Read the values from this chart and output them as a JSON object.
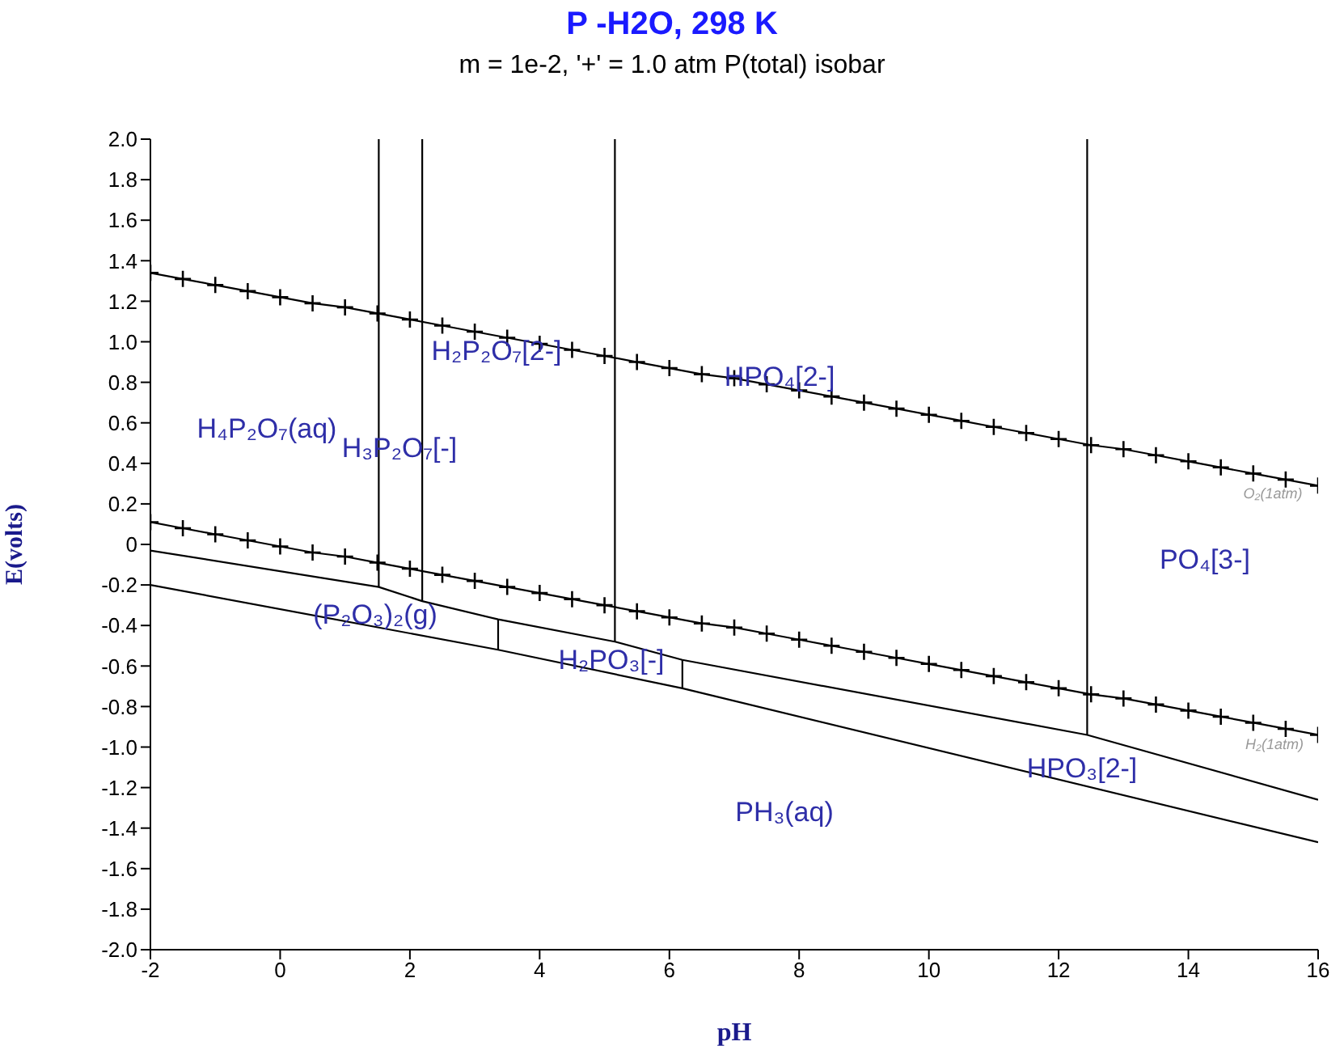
{
  "chart_data": {
    "type": "line",
    "title": "P -H2O, 298 K",
    "subtitle": "m = 1e-2, '+' = 1.0 atm P(total) isobar",
    "xlabel": "pH",
    "ylabel": "E(volts)",
    "xlim": [
      -2,
      16
    ],
    "xticks": [
      -2,
      0,
      2,
      4,
      6,
      8,
      10,
      12,
      14,
      16
    ],
    "ylim": [
      -2,
      2
    ],
    "yticks": [
      {
        "value": -2,
        "label": "-2.0"
      },
      -1.8,
      -1.6,
      -1.4,
      -1.2,
      {
        "value": -1,
        "label": "-1.0"
      },
      -0.8,
      -0.6,
      -0.4,
      -0.2,
      0,
      0.2,
      0.4,
      0.6,
      0.8,
      {
        "value": 1,
        "label": "1.0"
      },
      1.2,
      1.4,
      1.6,
      1.8,
      {
        "value": 2,
        "label": "2.0"
      }
    ],
    "marker": "none",
    "line_style": "solid",
    "series": [
      {
        "type": "line",
        "marker": "cross",
        "color": "#000000",
        "x": [
          -2,
          -1.5,
          -1,
          -0.5,
          0,
          0.5,
          1,
          1.5,
          2,
          2.5,
          3,
          3.5,
          4,
          4.5,
          5,
          5.5,
          6,
          6.5,
          7,
          7.5,
          8,
          8.5,
          9,
          9.5,
          10,
          10.5,
          11,
          11.5,
          12,
          12.5,
          13,
          13.5,
          14,
          14.5,
          15,
          15.5,
          16
        ],
        "values": [
          1.34,
          1.31,
          1.28,
          1.25,
          1.22,
          1.19,
          1.17,
          1.14,
          1.11,
          1.08,
          1.05,
          1.02,
          0.99,
          0.96,
          0.93,
          0.9,
          0.87,
          0.84,
          0.82,
          0.79,
          0.76,
          0.73,
          0.7,
          0.67,
          0.64,
          0.61,
          0.58,
          0.55,
          0.52,
          0.49,
          0.47,
          0.44,
          0.41,
          0.38,
          0.35,
          0.32,
          0.29
        ]
      },
      {
        "type": "line",
        "marker": "cross",
        "color": "#000000",
        "x": [
          -2,
          -1.5,
          -1,
          -0.5,
          0,
          0.5,
          1,
          1.5,
          2,
          2.5,
          3,
          3.5,
          4,
          4.5,
          5,
          5.5,
          6,
          6.5,
          7,
          7.5,
          8,
          8.5,
          9,
          9.5,
          10,
          10.5,
          11,
          11.5,
          12,
          12.5,
          13,
          13.5,
          14,
          14.5,
          15,
          15.5,
          16
        ],
        "values": [
          0.11,
          0.08,
          0.05,
          0.02,
          -0.01,
          -0.04,
          -0.06,
          -0.09,
          -0.12,
          -0.15,
          -0.18,
          -0.21,
          -0.24,
          -0.27,
          -0.3,
          -0.33,
          -0.36,
          -0.39,
          -0.41,
          -0.44,
          -0.47,
          -0.5,
          -0.53,
          -0.56,
          -0.59,
          -0.62,
          -0.65,
          -0.68,
          -0.71,
          -0.74,
          -0.76,
          -0.79,
          -0.82,
          -0.85,
          -0.88,
          -0.91,
          -0.94
        ]
      },
      {
        "type": "line",
        "color": "#000000",
        "x": [
          1.52,
          1.52
        ],
        "values": [
          2,
          -0.21
        ]
      },
      {
        "type": "line",
        "color": "#000000",
        "x": [
          2.19,
          2.19
        ],
        "values": [
          2,
          -0.28
        ]
      },
      {
        "type": "line",
        "color": "#000000",
        "x": [
          5.16,
          5.16
        ],
        "values": [
          2,
          -0.48
        ]
      },
      {
        "type": "line",
        "color": "#000000",
        "x": [
          12.44,
          12.44
        ],
        "values": [
          2,
          -0.94
        ]
      },
      {
        "type": "line",
        "color": "#000000",
        "x": [
          -2,
          1.52,
          2.19,
          3.36,
          5.16,
          6.2,
          12.44,
          16
        ],
        "values": [
          -0.03,
          -0.21,
          -0.28,
          -0.37,
          -0.48,
          -0.57,
          -0.94,
          -1.26
        ]
      },
      {
        "type": "line",
        "color": "#000000",
        "x": [
          -2,
          3.36,
          6.2,
          16
        ],
        "values": [
          -0.2,
          -0.52,
          -0.71,
          -1.47
        ]
      },
      {
        "type": "line",
        "color": "#000000",
        "x": [
          3.36,
          3.36
        ],
        "values": [
          -0.37,
          -0.52
        ]
      },
      {
        "type": "line",
        "color": "#000000",
        "x": [
          6.2,
          6.2
        ],
        "values": [
          -0.57,
          -0.71
        ]
      }
    ],
    "annotations": [
      "H₄P₂O₇(aq)",
      "H₃P₂O₇[-]",
      "H₂P₂O₇[2-]",
      "HPO₄[2-]",
      "PO₄[3-]",
      "(P₂O₃)₂(g)",
      "H₂PO₃[-]",
      "HPO₃[2-]",
      "PH₃(aq)",
      "O₂(1atm)",
      "H₂(1atm)"
    ]
  }
}
